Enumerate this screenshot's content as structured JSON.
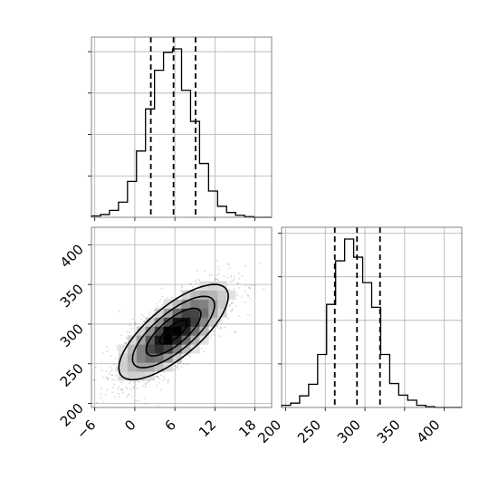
{
  "chart_data": {
    "type": "corner",
    "parameters": [
      {
        "name": "",
        "ticks": [
          -6,
          0,
          6,
          12,
          18
        ],
        "range": [
          -6.5,
          20.5
        ]
      },
      {
        "name": "",
        "ticks": [
          200,
          250,
          300,
          350,
          400
        ],
        "range": [
          195,
          422
        ]
      }
    ],
    "marginal_histograms": [
      {
        "parameter": 0,
        "quantiles": [
          2.4,
          5.8,
          9.1
        ],
        "bin_edges": [
          -6.5,
          -5.15,
          -3.8,
          -2.45,
          -1.1,
          0.25,
          1.6,
          2.95,
          4.3,
          5.65,
          7.0,
          8.35,
          9.7,
          11.05,
          12.4,
          13.75,
          15.1,
          16.45,
          17.8,
          19.15,
          20.5
        ],
        "counts": [
          2,
          4,
          10,
          22,
          52,
          96,
          157,
          213,
          239,
          244,
          184,
          139,
          78,
          38,
          16,
          7,
          3,
          1,
          0,
          0
        ]
      },
      {
        "parameter": 1,
        "quantiles": [
          262,
          290,
          319
        ],
        "bin_edges": [
          195,
          206.35,
          217.7,
          229.05,
          240.4,
          251.75,
          263.1,
          274.45,
          285.8,
          297.15,
          308.5,
          319.85,
          331.2,
          342.55,
          353.9,
          365.25,
          376.6,
          387.95,
          399.3,
          410.65,
          422
        ],
        "counts": [
          3,
          6,
          16,
          32,
          73,
          142,
          202,
          232,
          207,
          172,
          138,
          73,
          33,
          17,
          10,
          3,
          1,
          0,
          0,
          0
        ]
      }
    ],
    "joint": {
      "x_parameter": 0,
      "y_parameter": 1,
      "x_mean": 5.8,
      "x_sd": 4.1,
      "y_mean": 290,
      "y_sd": 30,
      "correlation": 0.75,
      "contour_levels_sigma": [
        0.5,
        1.0,
        1.5,
        2.0
      ],
      "density_peak": [
        5.8,
        290
      ]
    },
    "grid": true,
    "legend": "none"
  }
}
